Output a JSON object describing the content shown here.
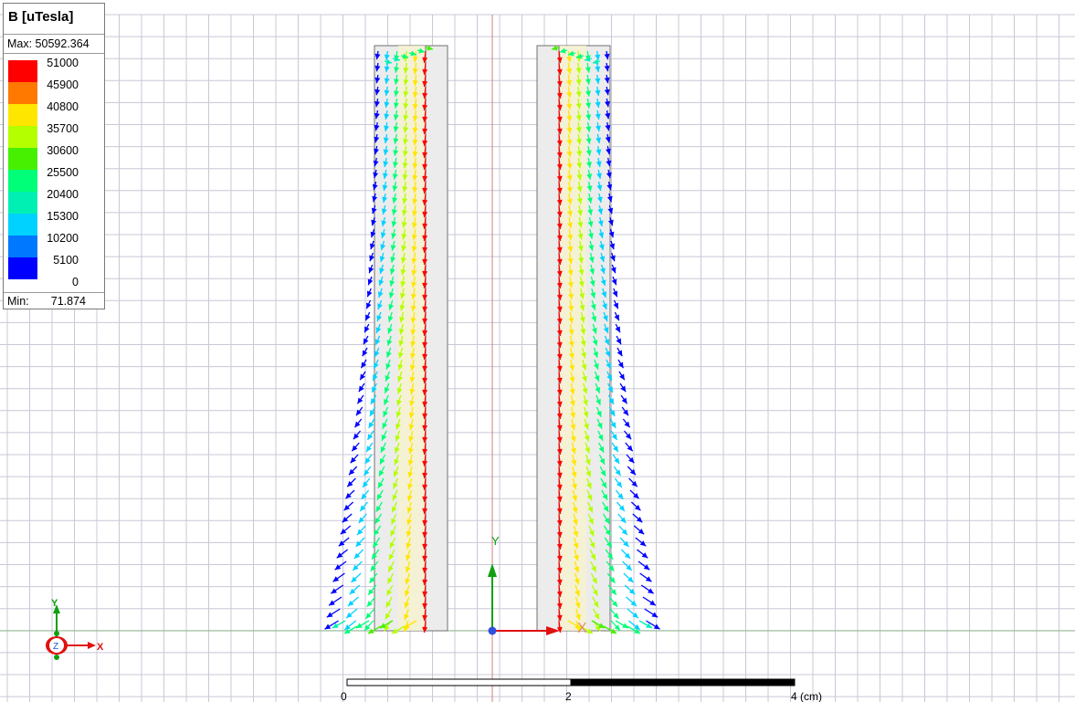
{
  "legend": {
    "title": "B [uTesla]",
    "max_label": "Max: 50592.364",
    "min_label": "Min:",
    "min_value": "71.874",
    "levels": [
      {
        "value": "51000",
        "color": "#ff0000"
      },
      {
        "value": "45900",
        "color": "#ff7800"
      },
      {
        "value": "40800",
        "color": "#ffe600"
      },
      {
        "value": "35700",
        "color": "#b4ff00"
      },
      {
        "value": "30600",
        "color": "#46f000"
      },
      {
        "value": "25500",
        "color": "#00ff78"
      },
      {
        "value": "20400",
        "color": "#00f0b4"
      },
      {
        "value": "15300",
        "color": "#00d2ff"
      },
      {
        "value": "10200",
        "color": "#0078ff"
      },
      {
        "value": "5100",
        "color": "#0000ff"
      },
      {
        "value": "0",
        "color": ""
      }
    ]
  },
  "scale_bar": {
    "labels": [
      "0",
      "2",
      "4 (cm)"
    ]
  },
  "axes": {
    "x_label": "X",
    "y_label": "Y",
    "z_label": "Z"
  },
  "colors": {
    "grid": "#c8c8d8",
    "background": "#ffffff",
    "column_fill": "#ececec"
  }
}
